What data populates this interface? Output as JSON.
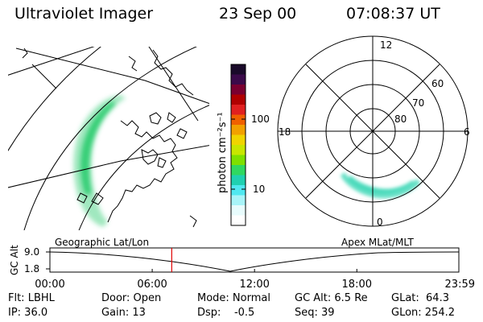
{
  "header": {
    "instrument": "Ultraviolet Imager",
    "date": "23 Sep 00",
    "time": "07:08:37 UT"
  },
  "colorbar": {
    "unit_label": "photon cm⁻²s⁻¹",
    "ticks": [
      "100",
      "10"
    ],
    "colors": [
      "#1a0a2a",
      "#3b0a4a",
      "#7a0030",
      "#b00000",
      "#e02020",
      "#f06000",
      "#f2a000",
      "#f0d400",
      "#c8e600",
      "#7ee000",
      "#30d860",
      "#20d0b0",
      "#50e8f0",
      "#a8f4f8",
      "#e8fcfd",
      "#ffffff"
    ]
  },
  "polar_plot": {
    "mlt_labels": [
      "12",
      "18",
      "6",
      "0"
    ],
    "lat_labels": [
      "60",
      "70",
      "80"
    ],
    "auroral_color": "#40d8b8"
  },
  "geo_plot": {
    "auroral_color": "#2ecc70"
  },
  "timeline": {
    "left_title": "Geographic Lat/Lon",
    "right_title": "Apex MLat/MLT",
    "axis_label": "GC Alt",
    "y_top": "9.0",
    "y_bottom": "1.8",
    "time_ticks": [
      "00:00",
      "06:00",
      "12:00",
      "18:00",
      "23:59"
    ],
    "current_time_hours": 7.144,
    "marker_color": "#e00000"
  },
  "info": {
    "flt": "Flt: LBHL",
    "door": "Door: Open",
    "mode": "Mode: Normal",
    "gc_alt": "GC Alt: 6.5 Re",
    "glat": "GLat:  64.3",
    "ip": "IP: 36.0",
    "gain": "Gain: 13",
    "dsp": "Dsp:    -0.5",
    "seq": "Seq: 39",
    "glon": "GLon: 254.2"
  }
}
